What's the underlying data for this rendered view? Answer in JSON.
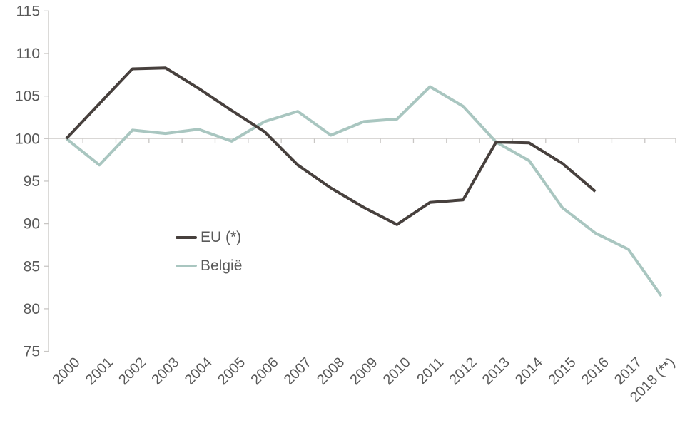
{
  "chart_data": {
    "type": "line",
    "categories": [
      "2000",
      "2001",
      "2002",
      "2003",
      "2004",
      "2005",
      "2006",
      "2007",
      "2008",
      "2009",
      "2010",
      "2011",
      "2012",
      "2013",
      "2014",
      "2015",
      "2016",
      "2017",
      "2018 (**)"
    ],
    "series": [
      {
        "name": "EU (*)",
        "color": "#47403d",
        "stroke_width": 4,
        "values": [
          100,
          104.1,
          108.2,
          108.3,
          105.9,
          103.3,
          100.8,
          96.9,
          94.2,
          91.9,
          89.9,
          92.5,
          92.8,
          99.6,
          99.5,
          97.1,
          93.8
        ]
      },
      {
        "name": "België",
        "color": "#a9c6c0",
        "stroke_width": 4,
        "values": [
          100,
          96.9,
          101.0,
          100.6,
          101.1,
          99.7,
          102.0,
          103.2,
          100.4,
          102.0,
          102.3,
          106.1,
          103.8,
          99.6,
          97.4,
          91.9,
          88.9,
          87.0,
          81.5
        ]
      }
    ],
    "title": "",
    "xlabel": "",
    "ylabel": "",
    "ylim": [
      75,
      115
    ],
    "yticks": [
      75,
      80,
      85,
      90,
      95,
      100,
      105,
      110,
      115
    ],
    "grid": "horizontal axis line drawn at value 100 only",
    "x_tick_marks": "small ticks on the 100-line at category boundaries",
    "x_label_rotation_deg": 45,
    "legend_position": "inside plot, center-left"
  },
  "legend": {
    "items": [
      {
        "label": "EU (*)"
      },
      {
        "label": "België"
      }
    ]
  },
  "axis_style": {
    "text_color": "#595959",
    "axis_line_color": "#c8c6c4",
    "cross_line_color": "#d9d7d5"
  }
}
